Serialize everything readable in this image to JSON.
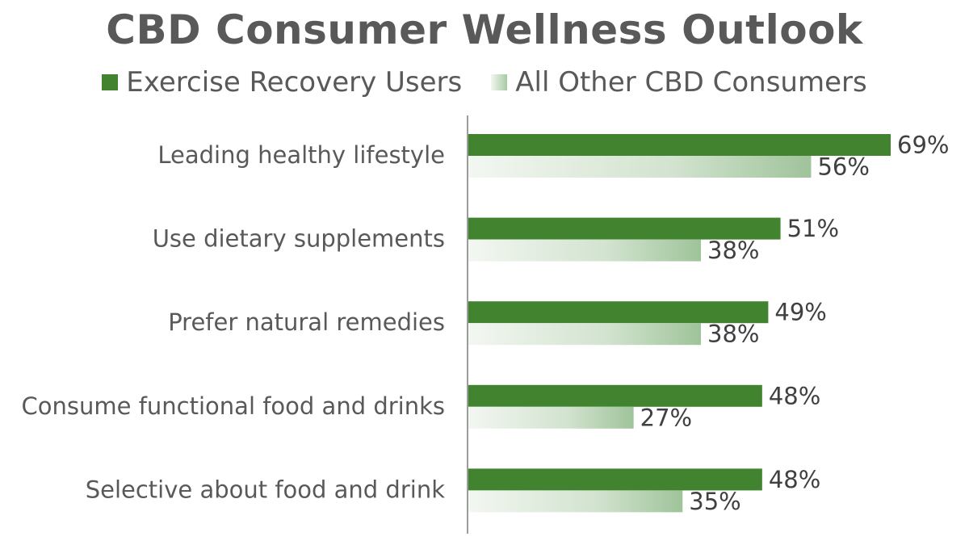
{
  "chart_data": {
    "type": "bar",
    "orientation": "horizontal",
    "title": "CBD Consumer Wellness Outlook",
    "categories": [
      "Leading healthy lifestyle",
      "Use dietary supplements",
      "Prefer natural remedies",
      "Consume functional food and drinks",
      "Selective about food and drink"
    ],
    "series": [
      {
        "name": "Exercise Recovery Users",
        "values": [
          69,
          51,
          49,
          48,
          48
        ],
        "color": "#41832f"
      },
      {
        "name": "All Other CBD Consumers",
        "values": [
          56,
          38,
          38,
          27,
          35
        ],
        "color": "#a8c9a4"
      }
    ],
    "value_suffix": "%",
    "xlim": [
      0,
      80
    ],
    "legend_position": "top",
    "grid": false
  }
}
